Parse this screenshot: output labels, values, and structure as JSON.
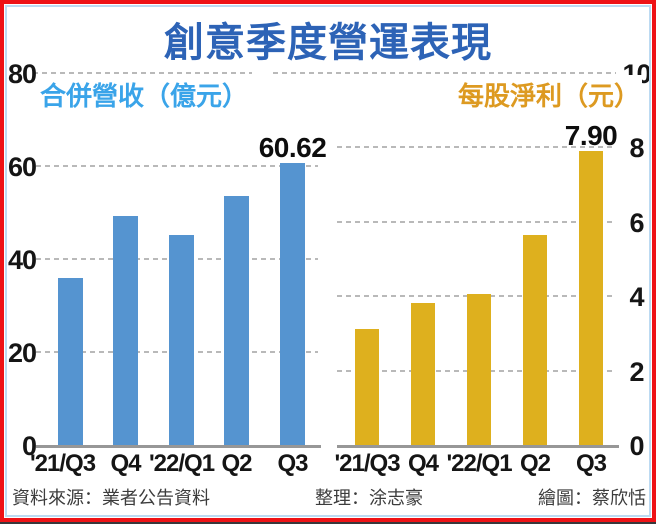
{
  "title": "創意季度營運表現",
  "colors": {
    "frame_border": "#ee1216",
    "inner_border": "#bcdaf2",
    "title": "#2d63b6",
    "revenue_label": "#3aa4e9",
    "eps_label": "#dd9a21",
    "gridline": "#b9b9b9",
    "baseline": "#979797",
    "axis_text": "#151515",
    "footer_text": "#3c3c3c"
  },
  "chart_data": [
    {
      "id": "revenue",
      "type": "bar",
      "title": "合併營收（億元）",
      "categories": [
        "'21/Q3",
        "Q4",
        "'22/Q1",
        "Q2",
        "Q3"
      ],
      "values": [
        35.9,
        49.3,
        45.1,
        53.6,
        60.62
      ],
      "ylim": [
        0,
        80
      ],
      "yticks": [
        0,
        20,
        40,
        60,
        80
      ],
      "axis_side": "left",
      "grid": "dashed",
      "bar_color": "#5594d0",
      "annotations": [
        {
          "category_index": 4,
          "text": "60.62"
        }
      ]
    },
    {
      "id": "eps",
      "type": "bar",
      "title": "每股淨利（元）",
      "categories": [
        "'21/Q3",
        "Q4",
        "'22/Q1",
        "Q2",
        "Q3"
      ],
      "values": [
        3.11,
        3.83,
        4.05,
        5.65,
        7.9
      ],
      "ylim": [
        0,
        10
      ],
      "yticks": [
        0,
        2,
        4,
        6,
        8,
        10
      ],
      "axis_side": "right",
      "grid": "dashed",
      "bar_color": "#deb01e",
      "annotations": [
        {
          "category_index": 4,
          "text": "7.90"
        }
      ]
    }
  ],
  "footer": {
    "source": "資料來源：業者公告資料",
    "compiled_by": "整理：涂志豪",
    "illustrated_by": "繪圖：蔡欣恬"
  }
}
